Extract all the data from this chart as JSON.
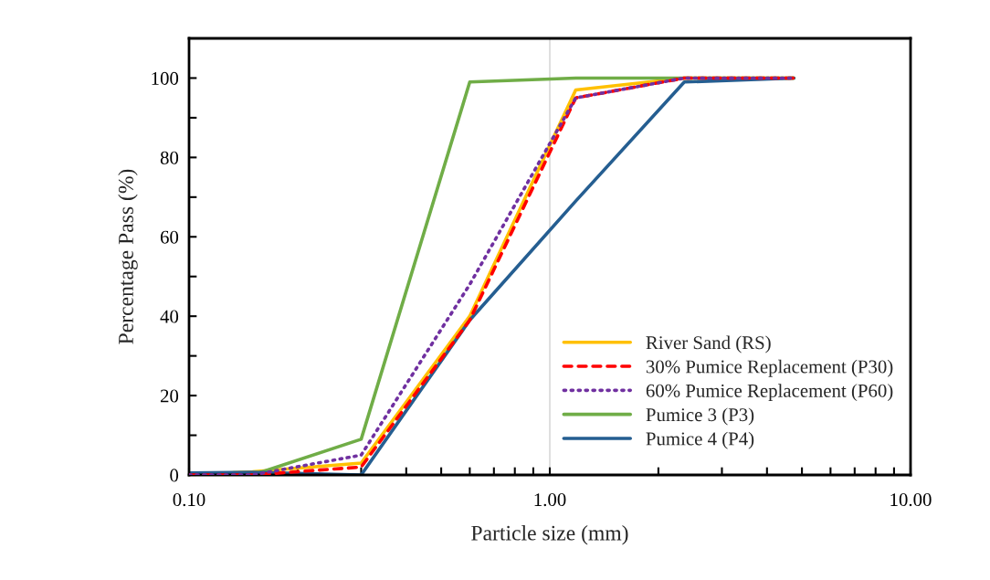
{
  "chart_data": {
    "type": "line",
    "xlabel": "Particle size (mm)",
    "ylabel": "Percentage Pass (%)",
    "x": [
      0.1,
      0.15,
      0.3,
      0.6,
      1.18,
      2.36,
      4.75
    ],
    "series": [
      {
        "name": "River Sand (RS)",
        "color": "#ffc000",
        "line_style": "solid",
        "values": [
          0,
          0.8,
          3,
          40,
          97,
          100,
          100
        ]
      },
      {
        "name": "30% Pumice Replacement (P30)",
        "color": "#ff0000",
        "line_style": "dashed",
        "values": [
          0,
          0,
          2,
          39,
          95,
          100,
          100
        ]
      },
      {
        "name": "60% Pumice Replacement (P60)",
        "color": "#7030a0",
        "line_style": "dotted",
        "values": [
          0,
          0,
          5,
          48,
          95,
          100,
          100
        ]
      },
      {
        "name": "Pumice 3 (P3)",
        "color": "#70ad47",
        "line_style": "solid",
        "values": [
          0,
          0,
          9,
          99,
          100,
          100,
          100
        ]
      },
      {
        "name": "Pumice 4 (P4)",
        "color": "#255e91",
        "line_style": "solid",
        "values": [
          0.5,
          0.7,
          0,
          39,
          69,
          99,
          100
        ]
      }
    ],
    "log": "x",
    "xlim": [
      0.1,
      10
    ],
    "xticks": [
      {
        "value": 0.1,
        "label": "0.10"
      },
      {
        "value": 0.2,
        "label": null
      },
      {
        "value": 0.3,
        "label": null
      },
      {
        "value": 0.4,
        "label": null
      },
      {
        "value": 0.5,
        "label": null
      },
      {
        "value": 0.6,
        "label": null
      },
      {
        "value": 0.7,
        "label": null
      },
      {
        "value": 0.8,
        "label": null
      },
      {
        "value": 0.9,
        "label": null
      },
      {
        "value": 1,
        "label": "1.00"
      },
      {
        "value": 2,
        "label": null
      },
      {
        "value": 3,
        "label": null
      },
      {
        "value": 4,
        "label": null
      },
      {
        "value": 5,
        "label": null
      },
      {
        "value": 6,
        "label": null
      },
      {
        "value": 7,
        "label": null
      },
      {
        "value": 8,
        "label": null
      },
      {
        "value": 9,
        "label": null
      },
      {
        "value": 10,
        "label": "10.00"
      }
    ],
    "ylim": [
      0,
      110
    ],
    "yticks": [
      0,
      {
        "value": 10,
        "label": null
      },
      20,
      {
        "value": 30,
        "label": null
      },
      40,
      {
        "value": 50,
        "label": null
      },
      60,
      {
        "value": 70,
        "label": null
      },
      80,
      {
        "value": 90,
        "label": null
      },
      100
    ],
    "ref_lines": [
      {
        "axis": "x",
        "value": 1,
        "color": "#d9d9d9"
      }
    ],
    "legend": "bottom right",
    "grid": false
  }
}
